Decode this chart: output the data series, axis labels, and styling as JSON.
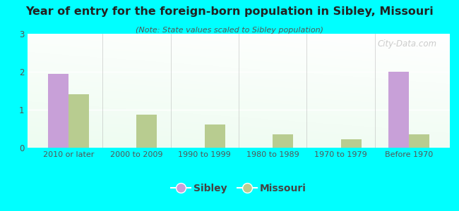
{
  "title": "Year of entry for the foreign-born population in Sibley, Missouri",
  "subtitle": "(Note: State values scaled to Sibley population)",
  "categories": [
    "2010 or later",
    "2000 to 2009",
    "1990 to 1999",
    "1980 to 1989",
    "1970 to 1979",
    "Before 1970"
  ],
  "sibley_values": [
    1.95,
    0,
    0,
    0,
    0,
    2.0
  ],
  "missouri_values": [
    1.4,
    0.87,
    0.62,
    0.35,
    0.22,
    0.35
  ],
  "sibley_color": "#c8a0d8",
  "missouri_color": "#b8cc90",
  "background_color": "#00ffff",
  "ylim": [
    0,
    3
  ],
  "yticks": [
    0,
    1,
    2,
    3
  ],
  "bar_width": 0.3,
  "legend_labels": [
    "Sibley",
    "Missouri"
  ],
  "watermark": "City-Data.com"
}
